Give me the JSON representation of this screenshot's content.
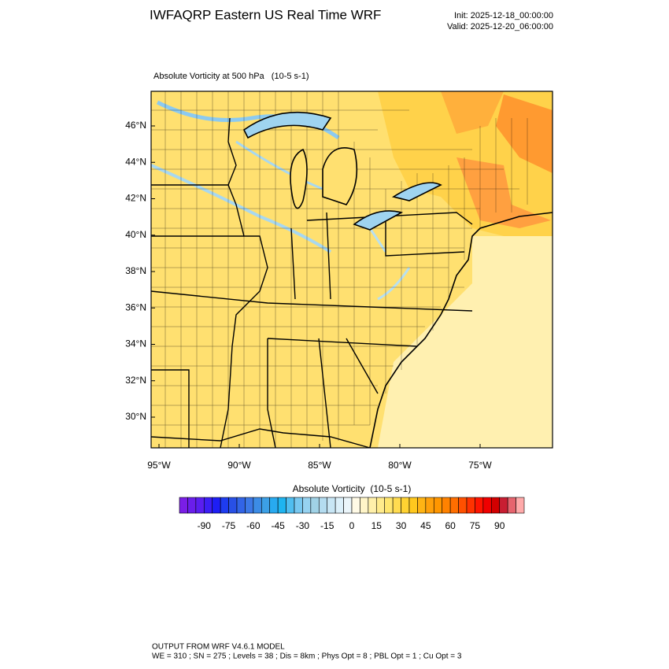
{
  "header": {
    "title": "IWFAQRP Eastern US Real Time WRF",
    "init": "Init: 2025-12-18_00:00:00",
    "valid": "Valid: 2025-12-20_06:00:00"
  },
  "map": {
    "title": "Absolute Vorticity at 500 hPa   (10-5 s-1)",
    "lat_labels": [
      "46°N",
      "44°N",
      "42°N",
      "40°N",
      "38°N",
      "36°N",
      "34°N",
      "32°N",
      "30°N"
    ],
    "lon_labels": [
      "95°W",
      "90°W",
      "85°W",
      "80°W",
      "75°W"
    ]
  },
  "colorbar": {
    "label": "Absolute Vorticity  (10-5 s-1)",
    "range": [
      -105,
      105
    ],
    "ticks": [
      -90,
      -75,
      -60,
      -45,
      -30,
      -15,
      0,
      15,
      30,
      45,
      60,
      75,
      90
    ],
    "colors": [
      "#7a1ee6",
      "#6a1eeb",
      "#5a1ef0",
      "#3c1ef5",
      "#1e1ef5",
      "#1e3cf0",
      "#2850e6",
      "#3264e6",
      "#3c78e6",
      "#3c8ce6",
      "#3ca0e6",
      "#28aaf0",
      "#1eb4f0",
      "#50bef0",
      "#78c8f0",
      "#96d2f0",
      "#a0d2e6",
      "#b4dcf0",
      "#c8e6f5",
      "#dcf0fa",
      "#ebf5fa",
      "#fffae6",
      "#fff5c8",
      "#fff0aa",
      "#ffeb8c",
      "#ffe66e",
      "#ffdc50",
      "#ffd232",
      "#ffc81e",
      "#ffb414",
      "#ffa00a",
      "#ff9600",
      "#ff8200",
      "#ff6e00",
      "#ff5000",
      "#ff3200",
      "#ff1400",
      "#f00000",
      "#d20000",
      "#c81e32",
      "#e6646e",
      "#ffaaaa"
    ]
  },
  "footer": {
    "line1": "OUTPUT FROM WRF V4.6.1 MODEL",
    "line2": "WE = 310 ; SN = 275 ; Levels = 38 ; Dis = 8km ; Phys Opt = 8 ; PBL Opt = 1 ; Cu Opt = 3"
  }
}
